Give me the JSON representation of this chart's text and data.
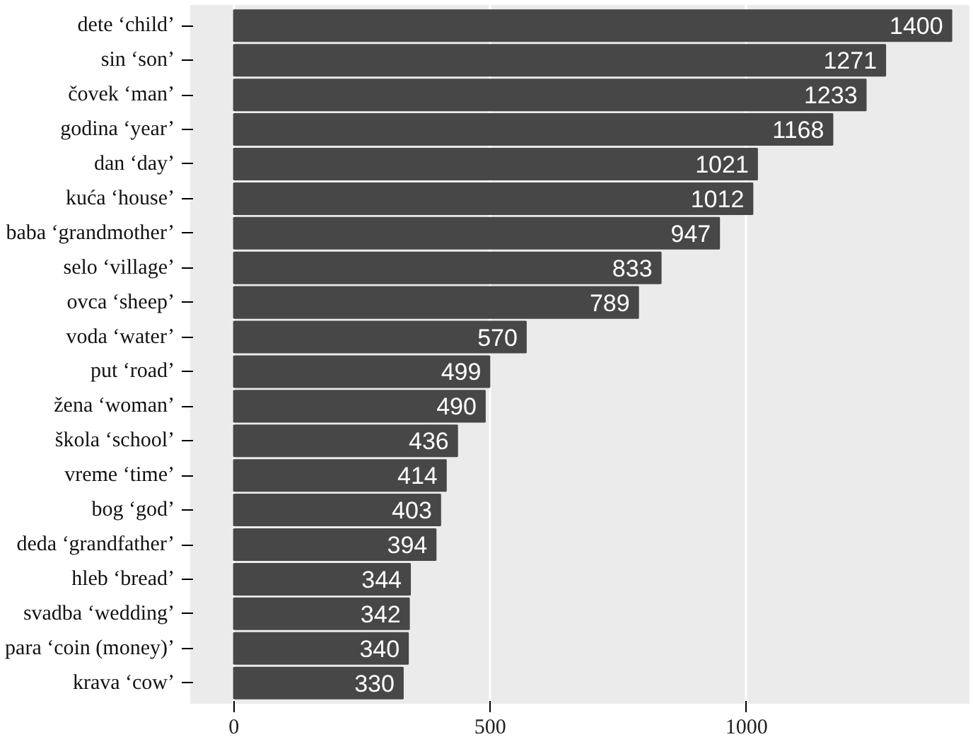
{
  "chart_data": {
    "type": "bar",
    "orientation": "horizontal",
    "categories": [
      "dete ‘child’",
      "sin ‘son’",
      "čovek ‘man’",
      "godina ‘year’",
      "dan ‘day’",
      "kuća ‘house’",
      "baba ‘grandmother’",
      "selo ‘village’",
      "ovca ‘sheep’",
      "voda ‘water’",
      "put ‘road’",
      "žena ‘woman’",
      "škola ‘school’",
      "vreme ‘time’",
      "bog ‘god’",
      "deda ‘grandfather’",
      "hleb ‘bread’",
      "svadba ‘wedding’",
      "para ‘coin (money)’",
      "krava ‘cow’"
    ],
    "values": [
      1400,
      1271,
      1233,
      1168,
      1021,
      1012,
      947,
      833,
      789,
      570,
      499,
      490,
      436,
      414,
      403,
      394,
      344,
      342,
      340,
      330
    ],
    "color": "#474747",
    "data_labels": true,
    "xlim": [
      -85,
      1435
    ],
    "xticks": [
      0,
      500,
      1000
    ],
    "grid": "x"
  }
}
